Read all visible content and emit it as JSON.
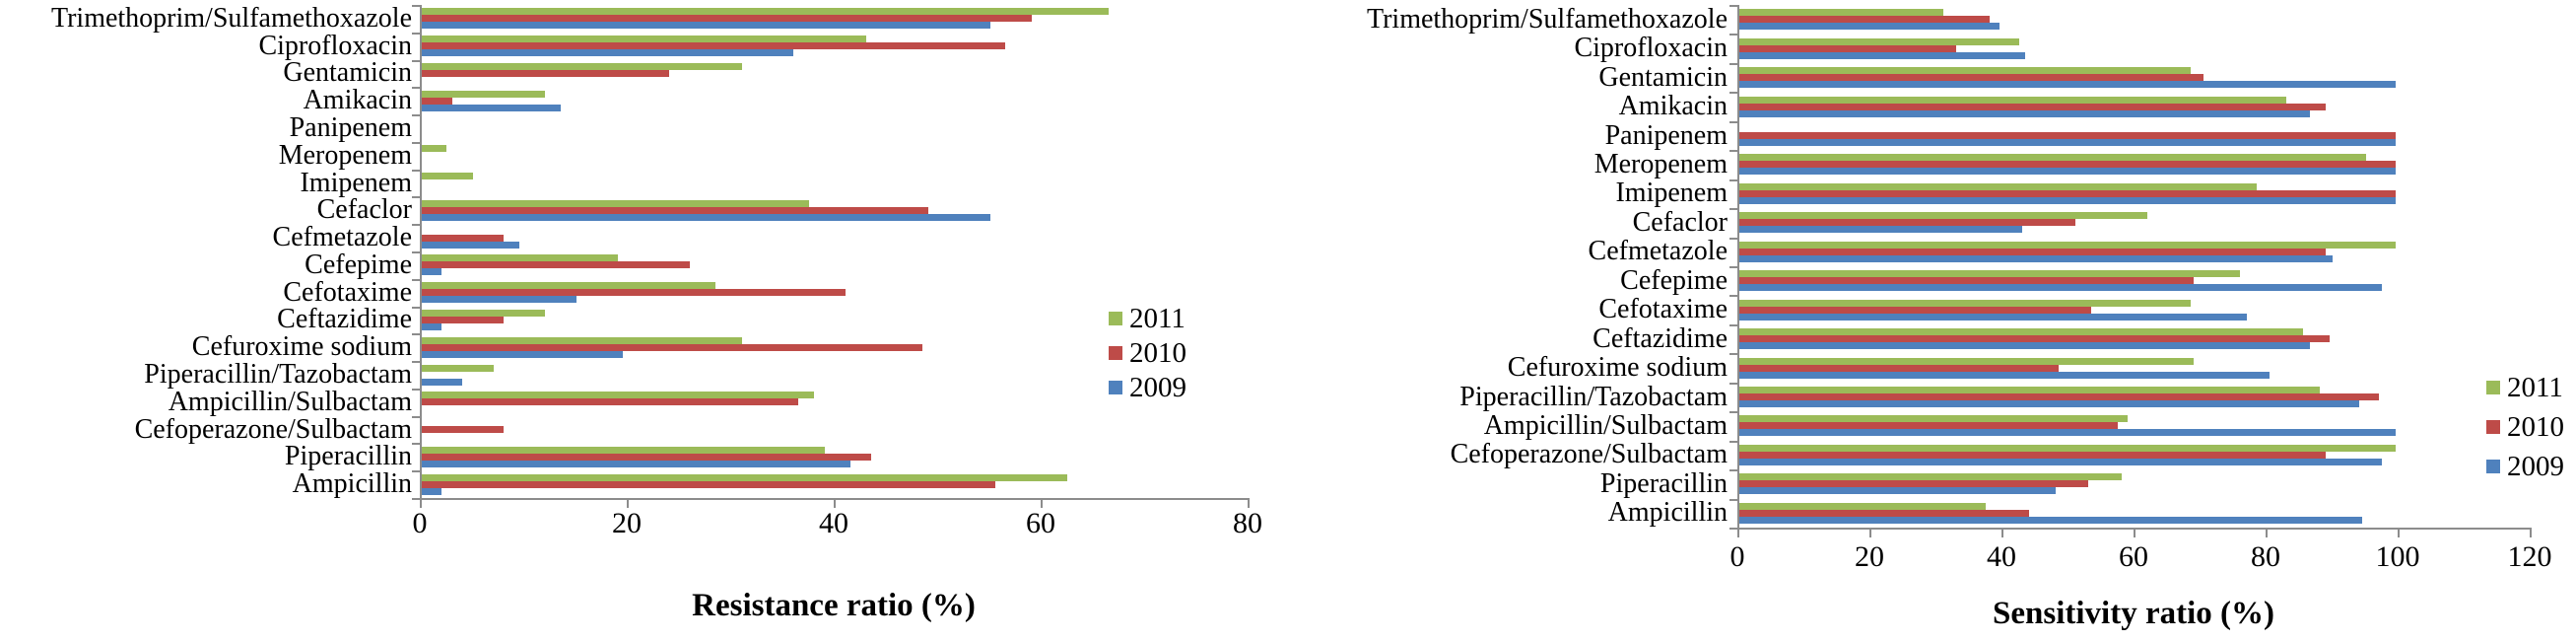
{
  "chart_data": [
    {
      "type": "bar",
      "orientation": "horizontal",
      "title": "",
      "xlabel": "Resistance ratio (%)",
      "ylabel": "",
      "xlim": [
        0,
        80
      ],
      "xticks": [
        0,
        20,
        40,
        60,
        80
      ],
      "grid": false,
      "legend_position": "right-middle",
      "categories": [
        "Trimethoprim/Sulfamethoxazole",
        "Ciprofloxacin",
        "Gentamicin",
        "Amikacin",
        "Panipenem",
        "Meropenem",
        "Imipenem",
        "Cefaclor",
        "Cefmetazole",
        "Cefepime",
        "Cefotaxime",
        "Ceftazidime",
        "Cefuroxime sodium",
        "Piperacillin/Tazobactam",
        "Ampicillin/Sulbactam",
        "Cefoperazone/Sulbactam",
        "Piperacillin",
        "Ampicillin"
      ],
      "series": [
        {
          "name": "2011",
          "color": "#9BBB59",
          "values": [
            66.5,
            43,
            31,
            12,
            0,
            2.5,
            5,
            37.5,
            0,
            19,
            28.5,
            12,
            31,
            7,
            38,
            0,
            39,
            62.5
          ]
        },
        {
          "name": "2010",
          "color": "#BE4B48",
          "values": [
            59,
            56.5,
            24,
            3,
            0,
            0,
            0,
            49,
            8,
            26,
            41,
            8,
            48.5,
            0,
            36.5,
            8,
            43.5,
            55.5
          ]
        },
        {
          "name": "2009",
          "color": "#4F81BD",
          "values": [
            55,
            36,
            0,
            13.5,
            0,
            0,
            0,
            55,
            9.5,
            2,
            15,
            2,
            19.5,
            4,
            0,
            0,
            41.5,
            2
          ]
        }
      ]
    },
    {
      "type": "bar",
      "orientation": "horizontal",
      "title": "",
      "xlabel": "Sensitivity ratio (%)",
      "ylabel": "",
      "xlim": [
        0,
        120
      ],
      "xticks": [
        0,
        20,
        40,
        60,
        80,
        100,
        120
      ],
      "grid": false,
      "legend_position": "right-middle",
      "categories": [
        "Trimethoprim/Sulfamethoxazole",
        "Ciprofloxacin",
        "Gentamicin",
        "Amikacin",
        "Panipenem",
        "Meropenem",
        "Imipenem",
        "Cefaclor",
        "Cefmetazole",
        "Cefepime",
        "Cefotaxime",
        "Ceftazidime",
        "Cefuroxime sodium",
        "Piperacillin/Tazobactam",
        "Ampicillin/Sulbactam",
        "Cefoperazone/Sulbactam",
        "Piperacillin",
        "Ampicillin"
      ],
      "series": [
        {
          "name": "2011",
          "color": "#9BBB59",
          "values": [
            31,
            42.5,
            68.5,
            83,
            0,
            95,
            78.5,
            62,
            99.5,
            76,
            68.5,
            85.5,
            69,
            88,
            59,
            99.5,
            58,
            37.5
          ]
        },
        {
          "name": "2010",
          "color": "#BE4B48",
          "values": [
            38,
            33,
            70.5,
            89,
            99.5,
            99.5,
            99.5,
            51,
            89,
            69,
            53.5,
            89.5,
            48.5,
            97,
            57.5,
            89,
            53,
            44
          ]
        },
        {
          "name": "2009",
          "color": "#4F81BD",
          "values": [
            39.5,
            43.5,
            99.5,
            86.5,
            99.5,
            99.5,
            99.5,
            43,
            90,
            97.5,
            77,
            86.5,
            80.5,
            94,
            99.5,
            97.5,
            48,
            94.5
          ]
        }
      ]
    }
  ]
}
